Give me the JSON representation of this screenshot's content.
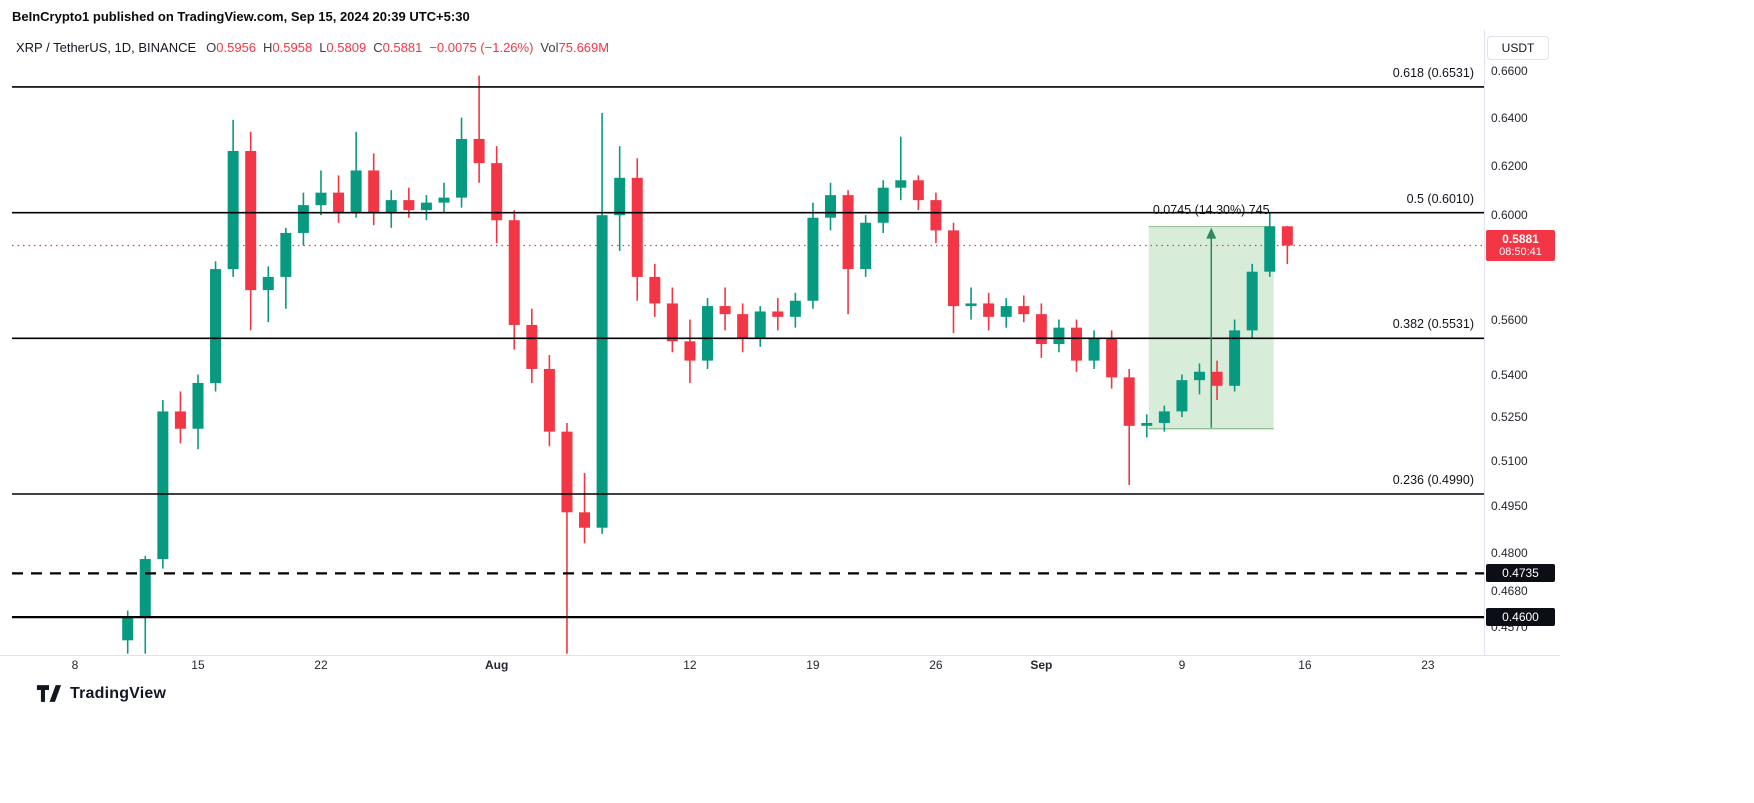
{
  "header": {
    "title": "BeInCrypto1 published on TradingView.com, Sep 15, 2024 20:39 UTC+5:30"
  },
  "legend": {
    "symbol": "XRP / TetherUS, 1D, BINANCE",
    "fields": [
      {
        "label": "O",
        "value": "0.5956"
      },
      {
        "label": "H",
        "value": "0.5958"
      },
      {
        "label": "L",
        "value": "0.5809"
      },
      {
        "label": "C",
        "value": "0.5881"
      },
      {
        "label": "",
        "value": "−0.0075 (−1.26%)"
      },
      {
        "label": "Vol",
        "value": "75.669M"
      }
    ]
  },
  "toolbar": {
    "currency_label": "USDT"
  },
  "footer": {
    "logo_text": "TradingView"
  },
  "colors": {
    "up": "#089981",
    "down": "#F23645",
    "line": "#000000",
    "axis_separator": "#e0e3eb",
    "measure_fill": "rgba(76,175,80,0.22)",
    "measure_edge": "rgba(56,142,60,0.55)",
    "measure_arrow": "#2c8a60"
  },
  "chart_data": {
    "type": "candlestick",
    "symbol": "XRP/USDT",
    "timeframe": "1D",
    "exchange": "BINANCE",
    "scale": "log",
    "visible_price_range": [
      0.449,
      0.66
    ],
    "price_axis": {
      "ticks": [
        {
          "label": "0.6600",
          "price": 0.66
        },
        {
          "label": "0.6400",
          "price": 0.64
        },
        {
          "label": "0.6200",
          "price": 0.62
        },
        {
          "label": "0.6000",
          "price": 0.6
        },
        {
          "label": "0.5600",
          "price": 0.56
        },
        {
          "label": "0.5400",
          "price": 0.54
        },
        {
          "label": "0.5250",
          "price": 0.525
        },
        {
          "label": "0.5100",
          "price": 0.51
        },
        {
          "label": "0.4950",
          "price": 0.495
        },
        {
          "label": "0.4800",
          "price": 0.48
        },
        {
          "label": "0.4680",
          "price": 0.468
        },
        {
          "label": "0.4570",
          "price": 0.457
        }
      ]
    },
    "x_axis": {
      "ticks": [
        {
          "label": "8",
          "day": 0,
          "major": false
        },
        {
          "label": "15",
          "day": 7,
          "major": false
        },
        {
          "label": "22",
          "day": 14,
          "major": false
        },
        {
          "label": "Aug",
          "day": 24,
          "major": true
        },
        {
          "label": "12",
          "day": 35,
          "major": false
        },
        {
          "label": "19",
          "day": 42,
          "major": false
        },
        {
          "label": "26",
          "day": 49,
          "major": false
        },
        {
          "label": "Sep",
          "day": 55,
          "major": true
        },
        {
          "label": "9",
          "day": 63,
          "major": false
        },
        {
          "label": "16",
          "day": 70,
          "major": false
        },
        {
          "label": "23",
          "day": 77,
          "major": false
        }
      ]
    },
    "fib_levels": [
      {
        "label": "0.618 (0.6531)",
        "price": 0.6531
      },
      {
        "label": "0.5 (0.6010)",
        "price": 0.601
      },
      {
        "label": "0.382 (0.5531)",
        "price": 0.5531
      },
      {
        "label": "0.236 (0.4990)",
        "price": 0.499
      }
    ],
    "support_lines": [
      {
        "price": 0.4735,
        "badge": "0.4735",
        "style": "dashed"
      },
      {
        "price": 0.46,
        "badge": "0.4600",
        "style": "solid"
      }
    ],
    "current_price": {
      "value": "0.5881",
      "countdown": "08:50:41",
      "price": 0.5881
    },
    "measurement": {
      "label": "0.0745 (14.30%) 745",
      "from_day": 61,
      "to_day": 68,
      "low": 0.521,
      "high": 0.5955
    },
    "candles": [
      [
        3,
        0.453,
        0.462,
        0.449,
        0.46
      ],
      [
        4,
        0.46,
        0.479,
        0.449,
        0.478
      ],
      [
        5,
        0.478,
        0.531,
        0.475,
        0.527
      ],
      [
        6,
        0.527,
        0.534,
        0.516,
        0.521
      ],
      [
        7,
        0.521,
        0.54,
        0.514,
        0.537
      ],
      [
        8,
        0.537,
        0.582,
        0.534,
        0.579
      ],
      [
        9,
        0.579,
        0.639,
        0.576,
        0.626
      ],
      [
        10,
        0.626,
        0.634,
        0.556,
        0.571
      ],
      [
        11,
        0.571,
        0.58,
        0.559,
        0.576
      ],
      [
        12,
        0.576,
        0.595,
        0.564,
        0.593
      ],
      [
        13,
        0.593,
        0.609,
        0.588,
        0.604
      ],
      [
        14,
        0.604,
        0.618,
        0.6,
        0.609
      ],
      [
        15,
        0.609,
        0.616,
        0.597,
        0.601
      ],
      [
        16,
        0.601,
        0.634,
        0.599,
        0.618
      ],
      [
        17,
        0.618,
        0.625,
        0.596,
        0.601
      ],
      [
        18,
        0.601,
        0.61,
        0.595,
        0.606
      ],
      [
        19,
        0.606,
        0.611,
        0.599,
        0.602
      ],
      [
        20,
        0.602,
        0.608,
        0.598,
        0.605
      ],
      [
        21,
        0.605,
        0.613,
        0.601,
        0.607
      ],
      [
        22,
        0.607,
        0.64,
        0.603,
        0.631
      ],
      [
        23,
        0.631,
        0.658,
        0.613,
        0.621
      ],
      [
        24,
        0.621,
        0.628,
        0.589,
        0.598
      ],
      [
        25,
        0.598,
        0.602,
        0.549,
        0.558
      ],
      [
        26,
        0.558,
        0.564,
        0.537,
        0.542
      ],
      [
        27,
        0.542,
        0.547,
        0.515,
        0.52
      ],
      [
        28,
        0.52,
        0.523,
        0.449,
        0.493
      ],
      [
        29,
        0.493,
        0.506,
        0.483,
        0.488
      ],
      [
        30,
        0.488,
        0.642,
        0.486,
        0.6
      ],
      [
        31,
        0.6,
        0.628,
        0.586,
        0.615
      ],
      [
        32,
        0.615,
        0.623,
        0.567,
        0.576
      ],
      [
        33,
        0.576,
        0.581,
        0.561,
        0.566
      ],
      [
        34,
        0.566,
        0.572,
        0.548,
        0.552
      ],
      [
        35,
        0.552,
        0.56,
        0.537,
        0.545
      ],
      [
        36,
        0.545,
        0.568,
        0.542,
        0.565
      ],
      [
        37,
        0.565,
        0.572,
        0.556,
        0.562
      ],
      [
        38,
        0.562,
        0.566,
        0.548,
        0.553
      ],
      [
        39,
        0.553,
        0.565,
        0.55,
        0.563
      ],
      [
        40,
        0.563,
        0.568,
        0.556,
        0.561
      ],
      [
        41,
        0.561,
        0.57,
        0.557,
        0.567
      ],
      [
        42,
        0.567,
        0.605,
        0.564,
        0.599
      ],
      [
        43,
        0.599,
        0.613,
        0.594,
        0.608
      ],
      [
        44,
        0.608,
        0.61,
        0.562,
        0.579
      ],
      [
        45,
        0.579,
        0.6,
        0.576,
        0.597
      ],
      [
        46,
        0.597,
        0.614,
        0.593,
        0.611
      ],
      [
        47,
        0.611,
        0.632,
        0.606,
        0.614
      ],
      [
        48,
        0.614,
        0.616,
        0.602,
        0.606
      ],
      [
        49,
        0.606,
        0.609,
        0.589,
        0.594
      ],
      [
        50,
        0.594,
        0.597,
        0.555,
        0.565
      ],
      [
        51,
        0.565,
        0.572,
        0.56,
        0.566
      ],
      [
        52,
        0.566,
        0.57,
        0.556,
        0.561
      ],
      [
        53,
        0.561,
        0.568,
        0.557,
        0.565
      ],
      [
        54,
        0.565,
        0.569,
        0.559,
        0.562
      ],
      [
        55,
        0.562,
        0.566,
        0.546,
        0.551
      ],
      [
        56,
        0.551,
        0.56,
        0.548,
        0.557
      ],
      [
        57,
        0.557,
        0.56,
        0.541,
        0.545
      ],
      [
        58,
        0.545,
        0.556,
        0.542,
        0.553
      ],
      [
        59,
        0.553,
        0.556,
        0.535,
        0.539
      ],
      [
        60,
        0.539,
        0.542,
        0.502,
        0.522
      ],
      [
        61,
        0.522,
        0.526,
        0.518,
        0.523
      ],
      [
        62,
        0.523,
        0.529,
        0.52,
        0.527
      ],
      [
        63,
        0.527,
        0.54,
        0.525,
        0.538
      ],
      [
        64,
        0.538,
        0.544,
        0.533,
        0.541
      ],
      [
        65,
        0.541,
        0.545,
        0.531,
        0.536
      ],
      [
        66,
        0.536,
        0.56,
        0.534,
        0.556
      ],
      [
        67,
        0.556,
        0.581,
        0.553,
        0.578
      ],
      [
        68,
        0.578,
        0.601,
        0.576,
        0.5956
      ],
      [
        69,
        0.5956,
        0.5958,
        0.5809,
        0.5881
      ]
    ]
  }
}
